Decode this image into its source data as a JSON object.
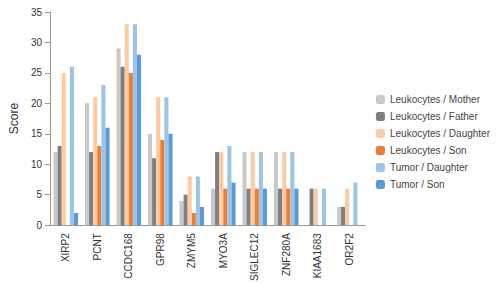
{
  "chart_data": {
    "type": "bar",
    "y_label": "Score",
    "categories": [
      "XIRP2",
      "PCNT",
      "CCDC168",
      "GPR98",
      "ZMYM5",
      "MYO3A",
      "SIGLEC12",
      "ZNF280A",
      "KIAA1683",
      "OR2F2"
    ],
    "series": [
      {
        "name": "Leukocytes / Mother",
        "color": "#c9c9c9",
        "values": [
          12,
          20,
          29,
          15,
          4,
          6,
          12,
          12,
          0,
          3
        ]
      },
      {
        "name": "Leukocytes / Father",
        "color": "#7f7f7f",
        "values": [
          13,
          12,
          26,
          11,
          5,
          12,
          6,
          6,
          6,
          3
        ]
      },
      {
        "name": "Leukocytes / Daughter",
        "color": "#fbcba3",
        "values": [
          25,
          21,
          33,
          21,
          8,
          12,
          12,
          12,
          6,
          6
        ]
      },
      {
        "name": "Leukocytes / Son",
        "color": "#ed7d31",
        "values": [
          0,
          13,
          25,
          14,
          2,
          6,
          6,
          6,
          0,
          0
        ]
      },
      {
        "name": "Tumor / Daughter",
        "color": "#9dc3e6",
        "values": [
          26,
          23,
          33,
          21,
          8,
          13,
          12,
          12,
          6,
          7
        ]
      },
      {
        "name": "Tumor / Son",
        "color": "#5b9bd5",
        "values": [
          2,
          16,
          28,
          15,
          3,
          7,
          6,
          6,
          0,
          0
        ]
      }
    ],
    "ylim": [
      0,
      35
    ],
    "yticks": [
      0,
      5,
      10,
      15,
      20,
      25,
      30,
      35
    ],
    "grid": false,
    "legend": "right"
  }
}
